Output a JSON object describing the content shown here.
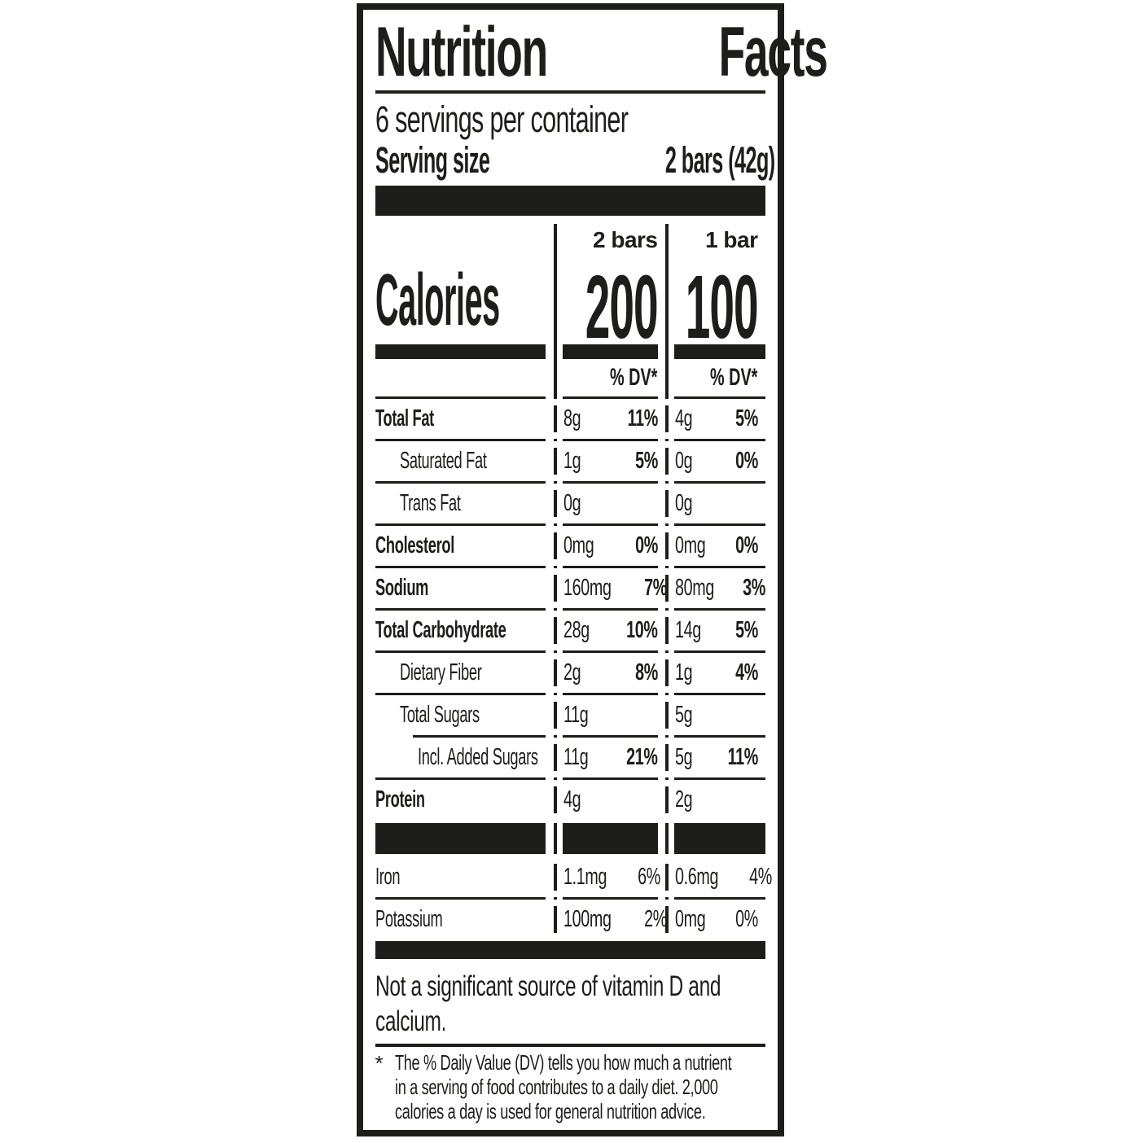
{
  "colors": {
    "ink": "#1d1d1b",
    "background": "#ffffff"
  },
  "label": {
    "title_word_1": "Nutrition",
    "title_word_2": "Facts",
    "servings_per_container": "6 servings per container",
    "serving_size_label": "Serving size",
    "serving_size_value": "2 bars (42g)",
    "calories_label": "Calories",
    "columns": [
      {
        "header": "2 bars",
        "calories": "200",
        "dv_header": "% DV*"
      },
      {
        "header": "1 bar",
        "calories": "100",
        "dv_header": "% DV*"
      }
    ],
    "rows": [
      {
        "name": "Total Fat",
        "v1": "8g",
        "p1": "11%",
        "v2": "4g",
        "p2": "5%"
      },
      {
        "name": "Saturated Fat",
        "v1": "1g",
        "p1": "5%",
        "v2": "0g",
        "p2": "0%"
      },
      {
        "name": "Trans Fat",
        "v1": "0g",
        "p1": "",
        "v2": "0g",
        "p2": ""
      },
      {
        "name": "Cholesterol",
        "v1": "0mg",
        "p1": "0%",
        "v2": "0mg",
        "p2": "0%"
      },
      {
        "name": "Sodium",
        "v1": "160mg",
        "p1": "7%",
        "v2": "80mg",
        "p2": "3%"
      },
      {
        "name": "Total Carbohydrate",
        "v1": "28g",
        "p1": "10%",
        "v2": "14g",
        "p2": "5%"
      },
      {
        "name": "Dietary Fiber",
        "v1": "2g",
        "p1": "8%",
        "v2": "1g",
        "p2": "4%"
      },
      {
        "name": "Total Sugars",
        "v1": "11g",
        "p1": "",
        "v2": "5g",
        "p2": ""
      },
      {
        "name": "Incl. Added Sugars",
        "v1": "11g",
        "p1": "21%",
        "v2": "5g",
        "p2": "11%"
      },
      {
        "name": "Protein",
        "v1": "4g",
        "p1": "",
        "v2": "2g",
        "p2": ""
      }
    ],
    "minerals": [
      {
        "name": "Iron",
        "v1": "1.1mg",
        "p1": "6%",
        "v2": "0.6mg",
        "p2": "4%"
      },
      {
        "name": "Potassium",
        "v1": "100mg",
        "p1": "2%",
        "v2": "0mg",
        "p2": "0%"
      }
    ],
    "not_significant_lines": [
      "Not a significant source of vitamin D and",
      "calcium."
    ],
    "footnote_marker": "*",
    "footnote_lines": [
      "The % Daily Value (DV) tells you how much a nutrient",
      "in a serving of food contributes to a daily diet. 2,000",
      "calories a day is used for general nutrition advice."
    ]
  }
}
